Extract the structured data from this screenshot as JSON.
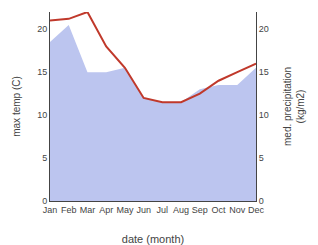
{
  "chart_data": {
    "type": "line",
    "categories": [
      "Jan",
      "Feb",
      "Mar",
      "Apr",
      "May",
      "Jun",
      "Jul",
      "Aug",
      "Sep",
      "Oct",
      "Nov",
      "Dec"
    ],
    "xlabel": "date (month)",
    "ylabel": "max temp (C)",
    "y2label": "med. precipitation\n(kg/m2)",
    "series": [
      {
        "type": "area",
        "axis": "y2",
        "color": "#bcc5ef",
        "values": [
          18.5,
          20.5,
          15.0,
          15.0,
          15.5,
          12.0,
          11.5,
          11.5,
          13.0,
          13.5,
          13.5,
          15.5
        ]
      },
      {
        "type": "line",
        "color": "#c0392b",
        "values": [
          21.0,
          21.2,
          22.0,
          18.0,
          15.5,
          12.0,
          11.5,
          11.5,
          12.5,
          14.0,
          15.0,
          16.0
        ]
      }
    ],
    "ylim": [
      0,
      22
    ],
    "yticks": [
      0,
      5,
      10,
      15,
      20
    ],
    "y2lim": [
      0,
      22
    ],
    "y2ticks": [
      0,
      5,
      10,
      15,
      20
    ],
    "grid": false
  }
}
